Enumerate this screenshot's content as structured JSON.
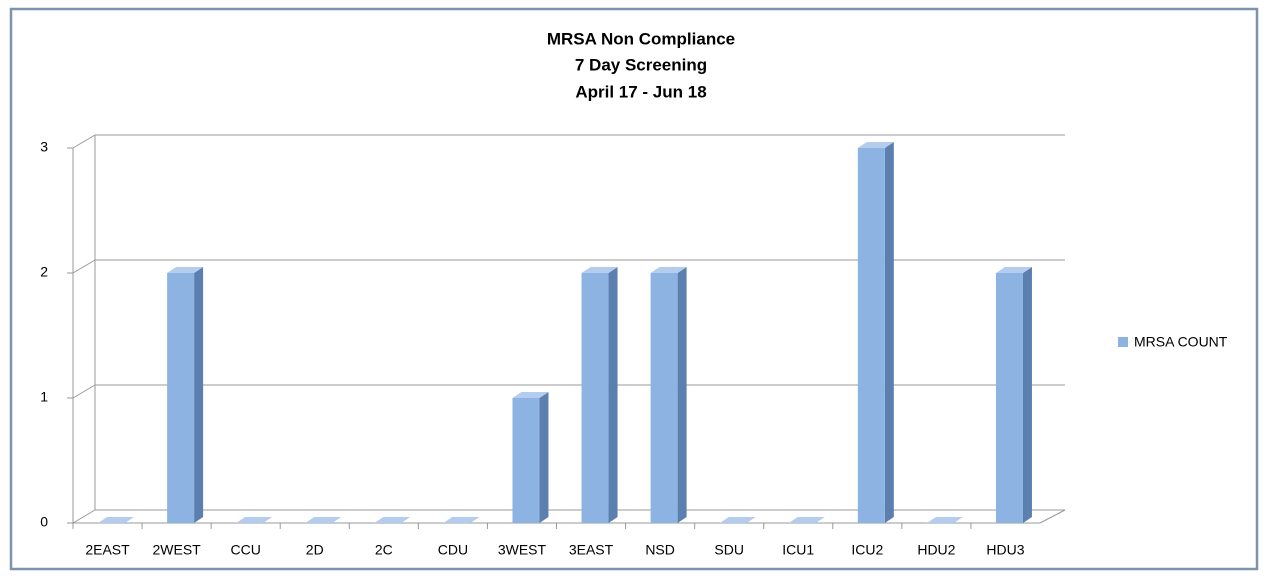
{
  "chart_data": {
    "type": "bar3d",
    "title": [
      "MRSA Non Compliance",
      "7 Day Screening",
      "April 17 - Jun 18"
    ],
    "categories": [
      "2EAST",
      "2WEST",
      "CCU",
      "2D",
      "2C",
      "CDU",
      "3WEST",
      "3EAST",
      "NSD",
      "SDU",
      "ICU1",
      "ICU2",
      "HDU2",
      "HDU3"
    ],
    "series": [
      {
        "name": "MRSA COUNT",
        "color": "#8db3e2",
        "values": [
          0,
          2,
          0,
          0,
          0,
          0,
          1,
          2,
          2,
          0,
          0,
          3,
          0,
          2
        ]
      }
    ],
    "ylim": [
      0,
      3
    ],
    "yticks": [
      0,
      1,
      2,
      3
    ],
    "grid": true,
    "legend": "right"
  }
}
